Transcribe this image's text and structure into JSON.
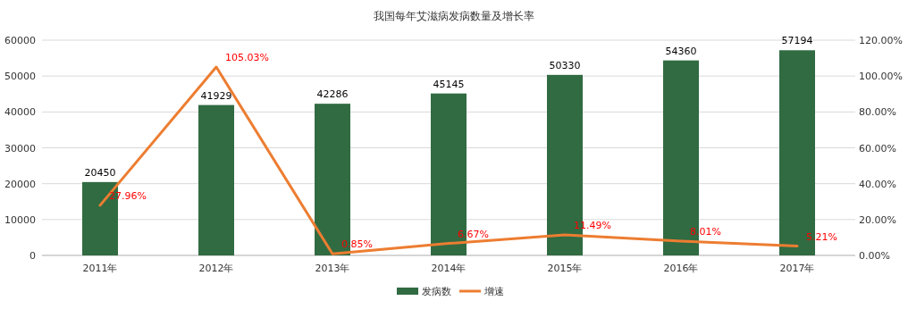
{
  "chart_data": {
    "type": "bar",
    "title": "我国每年艾滋病发病数量及增长率",
    "categories": [
      "2011年",
      "2012年",
      "2013年",
      "2014年",
      "2015年",
      "2016年",
      "2017年"
    ],
    "series": [
      {
        "name": "发病数",
        "color": "#316b42",
        "values": [
          20450,
          41929,
          42286,
          45145,
          50330,
          54360,
          57194
        ]
      },
      {
        "name": "增速",
        "type": "line",
        "axis": "y2",
        "color": "#ed7d31",
        "values": [
          27.96,
          105.03,
          0.85,
          6.67,
          11.49,
          8.01,
          5.21
        ],
        "value_labels": [
          "27.96%",
          "105.03%",
          "0.85%",
          "6.67%",
          "11.49%",
          "8.01%",
          "5.21%"
        ]
      }
    ],
    "data_labels": true,
    "ylim": [
      0,
      60000
    ],
    "yticks": [
      0,
      10000,
      20000,
      30000,
      40000,
      50000,
      60000
    ],
    "y2lim": [
      0,
      120
    ],
    "y2ticks": [
      {
        "value": 0,
        "label": "0.00%"
      },
      {
        "value": 20,
        "label": "20.00%"
      },
      {
        "value": 40,
        "label": "40.00%"
      },
      {
        "value": 60,
        "label": "60.00%"
      },
      {
        "value": 80,
        "label": "80.00%"
      },
      {
        "value": 100,
        "label": "100.00%"
      },
      {
        "value": 120,
        "label": "120.00%"
      }
    ],
    "grid": "y",
    "legend": "bottom"
  }
}
